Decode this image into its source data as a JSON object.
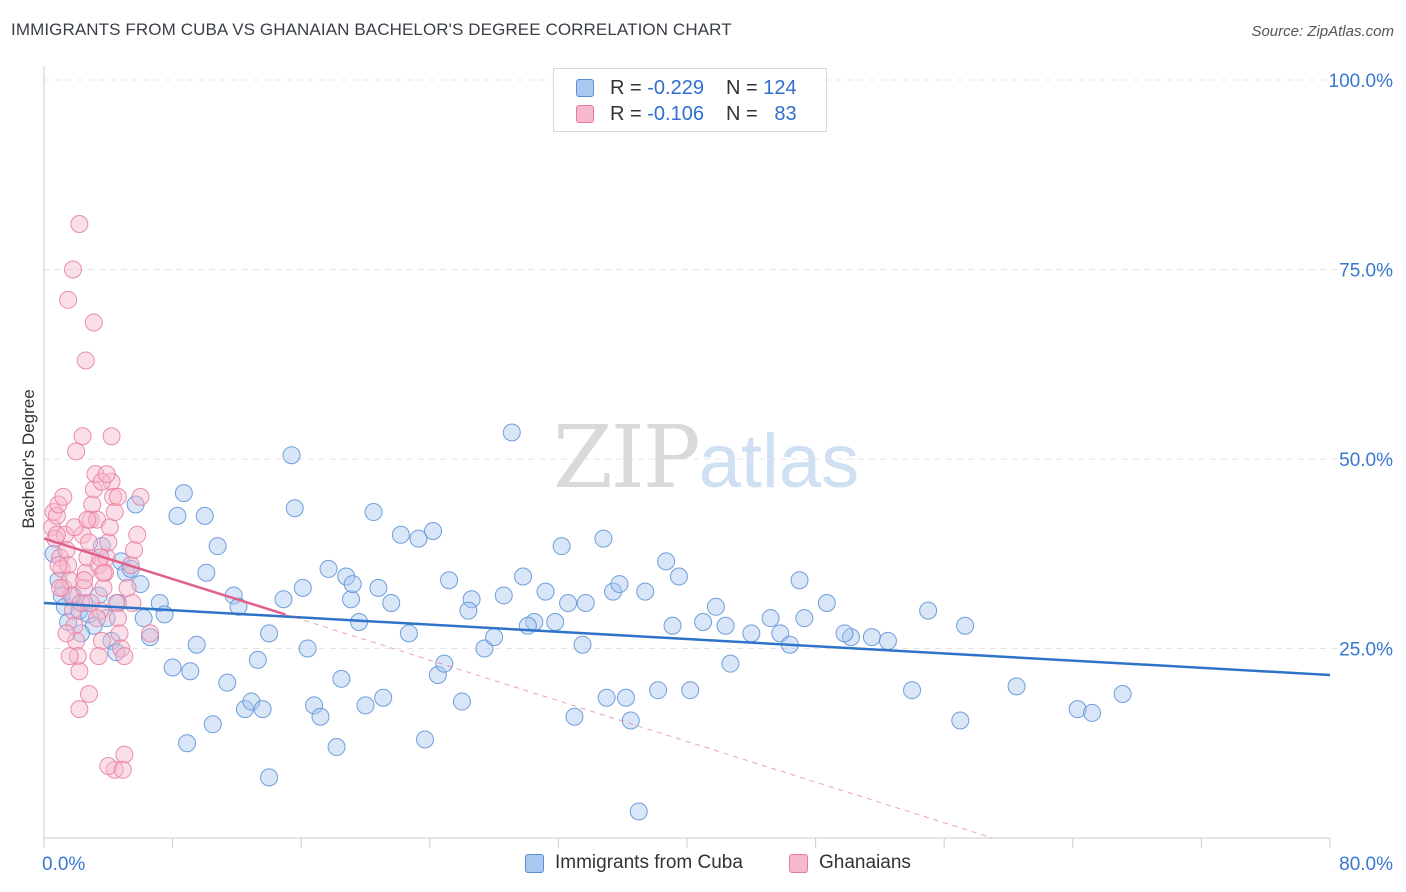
{
  "title": "IMMIGRANTS FROM CUBA VS GHANAIAN BACHELOR'S DEGREE CORRELATION CHART",
  "source": "Source: ZipAtlas.com",
  "watermark": {
    "zip": "ZIP",
    "atlas": "atlas"
  },
  "legend": {
    "r_label": "R =",
    "n_label": "N =",
    "rows": [
      {
        "r": "-0.229",
        "n": "124"
      },
      {
        "r": "-0.106",
        "n": "83"
      }
    ]
  },
  "colors": {
    "blue_fill": "#a9c8f0",
    "blue_stroke": "#5b8fd6",
    "blue_line": "#2f73c9",
    "pink_fill": "#f6b8cc",
    "pink_stroke": "#e57ca0",
    "pink_line": "#e0608c",
    "axis_text": "#3a78d0"
  },
  "chart_data": {
    "type": "scatter",
    "title": "IMMIGRANTS FROM CUBA VS GHANAIAN BACHELOR'S DEGREE CORRELATION CHART",
    "ylabel": "Bachelor's Degree",
    "xlim": [
      0,
      80
    ],
    "ylim": [
      0,
      100
    ],
    "x_tick_labels": {
      "left": "0.0%",
      "right": "80.0%"
    },
    "y_ticks": [
      {
        "value": 100,
        "label": "100.0%"
      },
      {
        "value": 75,
        "label": "75.0%"
      },
      {
        "value": 50,
        "label": "50.0%"
      },
      {
        "value": 25,
        "label": "25.0%"
      }
    ],
    "series": [
      {
        "name": "Immigrants from Cuba",
        "color": "#5b8fd6",
        "points": [
          [
            0.6,
            37.5
          ],
          [
            0.9,
            34
          ],
          [
            1.1,
            32
          ],
          [
            1.3,
            30.5
          ],
          [
            1.5,
            28.5
          ],
          [
            1.8,
            32
          ],
          [
            2.2,
            30
          ],
          [
            2.5,
            31
          ],
          [
            2.8,
            29.5
          ],
          [
            3.1,
            28
          ],
          [
            3.4,
            32
          ],
          [
            3.6,
            38.5
          ],
          [
            3.9,
            29
          ],
          [
            4.2,
            26
          ],
          [
            4.5,
            24.5
          ],
          [
            4.8,
            36.5
          ],
          [
            5.1,
            35
          ],
          [
            5.4,
            35.5
          ],
          [
            5.7,
            44
          ],
          [
            6.0,
            33.5
          ],
          [
            6.6,
            26.5
          ],
          [
            7.2,
            31
          ],
          [
            7.5,
            29.5
          ],
          [
            8.0,
            22.5
          ],
          [
            8.7,
            45.5
          ],
          [
            8.3,
            42.5
          ],
          [
            9.1,
            22
          ],
          [
            9.5,
            25.5
          ],
          [
            10.0,
            42.5
          ],
          [
            10.5,
            15
          ],
          [
            10.8,
            38.5
          ],
          [
            10.1,
            35
          ],
          [
            11.4,
            20.5
          ],
          [
            11.8,
            32
          ],
          [
            12.1,
            30.5
          ],
          [
            12.5,
            17
          ],
          [
            12.9,
            18
          ],
          [
            13.3,
            23.5
          ],
          [
            13.6,
            17
          ],
          [
            14.0,
            27
          ],
          [
            14.9,
            31.5
          ],
          [
            15.4,
            50.5
          ],
          [
            15.6,
            43.5
          ],
          [
            16.1,
            33
          ],
          [
            16.4,
            25
          ],
          [
            16.8,
            17.5
          ],
          [
            17.2,
            16
          ],
          [
            17.7,
            35.5
          ],
          [
            18.2,
            12
          ],
          [
            18.5,
            21
          ],
          [
            18.8,
            34.5
          ],
          [
            19.1,
            31.5
          ],
          [
            19.6,
            28.5
          ],
          [
            20.0,
            17.5
          ],
          [
            20.5,
            43
          ],
          [
            20.8,
            33
          ],
          [
            21.1,
            18.5
          ],
          [
            21.6,
            31
          ],
          [
            22.2,
            40
          ],
          [
            22.7,
            27
          ],
          [
            23.3,
            39.5
          ],
          [
            24.2,
            40.5
          ],
          [
            23.7,
            13
          ],
          [
            24.5,
            21.5
          ],
          [
            24.9,
            23
          ],
          [
            25.2,
            34
          ],
          [
            26.0,
            18
          ],
          [
            26.6,
            31.5
          ],
          [
            27.4,
            25
          ],
          [
            28.0,
            26.5
          ],
          [
            28.6,
            32
          ],
          [
            29.1,
            53.5
          ],
          [
            29.8,
            34.5
          ],
          [
            30.5,
            28.5
          ],
          [
            31.2,
            32.5
          ],
          [
            31.8,
            28.5
          ],
          [
            32.2,
            38.5
          ],
          [
            32.6,
            31
          ],
          [
            33.0,
            16
          ],
          [
            33.5,
            25.5
          ],
          [
            34.8,
            39.5
          ],
          [
            35.0,
            18.5
          ],
          [
            35.4,
            32.5
          ],
          [
            35.8,
            33.5
          ],
          [
            36.5,
            15.5
          ],
          [
            37.4,
            32.5
          ],
          [
            37.0,
            3.5
          ],
          [
            38.2,
            19.5
          ],
          [
            38.7,
            36.5
          ],
          [
            39.1,
            28
          ],
          [
            39.5,
            34.5
          ],
          [
            40.2,
            19.5
          ],
          [
            41.0,
            28.5
          ],
          [
            41.8,
            30.5
          ],
          [
            42.4,
            28
          ],
          [
            42.7,
            23
          ],
          [
            44.0,
            27
          ],
          [
            45.2,
            29
          ],
          [
            45.8,
            27
          ],
          [
            46.4,
            25.5
          ],
          [
            47.0,
            34
          ],
          [
            47.3,
            29
          ],
          [
            48.7,
            31
          ],
          [
            50.2,
            26.5
          ],
          [
            51.5,
            26.5
          ],
          [
            52.5,
            26
          ],
          [
            54.0,
            19.5
          ],
          [
            55.0,
            30
          ],
          [
            57.0,
            15.5
          ],
          [
            57.3,
            28
          ],
          [
            60.5,
            20
          ],
          [
            64.3,
            17
          ],
          [
            65.2,
            16.5
          ],
          [
            67.1,
            19
          ],
          [
            2.3,
            27
          ],
          [
            4.6,
            31
          ],
          [
            6.2,
            29
          ],
          [
            8.9,
            12.5
          ],
          [
            14.0,
            8
          ],
          [
            19.2,
            33.5
          ],
          [
            26.4,
            30
          ],
          [
            30.1,
            28
          ],
          [
            33.7,
            31
          ],
          [
            36.2,
            18.5
          ],
          [
            49.8,
            27
          ]
        ]
      },
      {
        "name": "Ghanaians",
        "color": "#e57ca0",
        "points": [
          [
            0.5,
            41
          ],
          [
            0.6,
            43
          ],
          [
            0.7,
            39.5
          ],
          [
            0.8,
            42.5
          ],
          [
            0.9,
            44
          ],
          [
            1.0,
            37
          ],
          [
            1.1,
            35.5
          ],
          [
            1.2,
            33
          ],
          [
            1.3,
            40
          ],
          [
            1.4,
            38
          ],
          [
            1.5,
            36
          ],
          [
            1.6,
            34
          ],
          [
            1.7,
            32
          ],
          [
            1.8,
            30
          ],
          [
            1.9,
            28
          ],
          [
            2.0,
            26
          ],
          [
            2.1,
            24
          ],
          [
            2.2,
            22
          ],
          [
            2.3,
            31
          ],
          [
            2.4,
            40
          ],
          [
            2.5,
            33
          ],
          [
            2.6,
            35
          ],
          [
            2.7,
            37
          ],
          [
            2.8,
            39
          ],
          [
            2.9,
            42
          ],
          [
            3.0,
            44
          ],
          [
            3.1,
            46
          ],
          [
            3.2,
            48
          ],
          [
            3.3,
            42
          ],
          [
            3.4,
            36
          ],
          [
            3.5,
            30
          ],
          [
            3.6,
            26
          ],
          [
            3.7,
            33
          ],
          [
            3.8,
            35
          ],
          [
            3.9,
            37
          ],
          [
            4.0,
            39
          ],
          [
            4.1,
            41
          ],
          [
            4.2,
            47
          ],
          [
            4.3,
            45
          ],
          [
            4.4,
            43
          ],
          [
            4.5,
            31
          ],
          [
            4.6,
            29
          ],
          [
            4.7,
            27
          ],
          [
            4.8,
            25
          ],
          [
            5.0,
            24
          ],
          [
            5.2,
            33
          ],
          [
            5.4,
            36
          ],
          [
            5.6,
            38
          ],
          [
            5.8,
            40
          ],
          [
            6.0,
            45
          ],
          [
            2.2,
            81
          ],
          [
            1.8,
            75
          ],
          [
            1.5,
            71
          ],
          [
            3.1,
            68
          ],
          [
            2.6,
            63
          ],
          [
            2.4,
            53
          ],
          [
            2.0,
            51
          ],
          [
            4.2,
            53
          ],
          [
            2.2,
            17
          ],
          [
            2.8,
            19
          ],
          [
            3.4,
            24
          ],
          [
            4.4,
            9
          ],
          [
            4.0,
            9.5
          ],
          [
            5.0,
            11
          ],
          [
            4.9,
            9
          ],
          [
            3.6,
            47
          ],
          [
            1.2,
            45
          ],
          [
            0.8,
            40
          ],
          [
            1.0,
            33
          ],
          [
            3.9,
            48
          ],
          [
            4.6,
            45
          ],
          [
            1.6,
            24
          ],
          [
            2.9,
            31
          ],
          [
            3.3,
            29
          ],
          [
            5.5,
            31
          ],
          [
            6.6,
            27
          ],
          [
            1.4,
            27
          ],
          [
            2.5,
            34
          ],
          [
            3.7,
            35
          ],
          [
            0.9,
            36
          ],
          [
            1.9,
            41
          ],
          [
            2.7,
            42
          ],
          [
            3.5,
            37
          ]
        ]
      }
    ],
    "trend_lines": [
      {
        "series": "Immigrants from Cuba",
        "x": [
          0,
          80
        ],
        "y": [
          31,
          21.5
        ],
        "style": "solid"
      },
      {
        "series": "Ghanaians",
        "x": [
          0,
          15
        ],
        "y": [
          39.5,
          29.5
        ],
        "style": "solid"
      },
      {
        "series": "Ghanaians",
        "x": [
          15,
          59
        ],
        "y": [
          29.5,
          0
        ],
        "style": "dashed"
      }
    ]
  },
  "bottom_legend": [
    {
      "label": "Immigrants from Cuba"
    },
    {
      "label": "Ghanaians"
    }
  ]
}
